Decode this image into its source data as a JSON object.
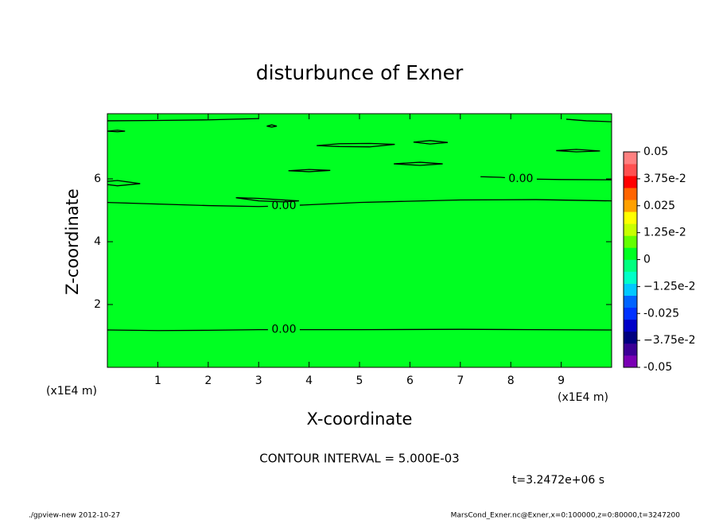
{
  "chart_data": {
    "type": "contour",
    "title": "disturbunce of Exner",
    "xlabel": "X-coordinate",
    "ylabel": "Z-coordinate",
    "x_unit": "(x1E4 m)",
    "xlim": [
      0,
      10
    ],
    "xticks": [
      1,
      2,
      3,
      4,
      5,
      6,
      7,
      8,
      9
    ],
    "ylim": [
      0,
      8
    ],
    "yticks": [
      2,
      4,
      6
    ],
    "field_color": "#00ff22",
    "line_color": "#000000",
    "contours": [
      {
        "level": 0,
        "label": "0.00",
        "x": [
          0,
          1,
          2,
          3,
          3.5,
          5,
          7,
          8.5,
          10
        ],
        "y": [
          1.19,
          1.17,
          1.18,
          1.2,
          1.2,
          1.2,
          1.21,
          1.2,
          1.19
        ]
      },
      {
        "level": 0,
        "label": "0.00",
        "x": [
          0,
          1,
          2,
          3,
          3.5,
          5,
          7,
          8.5,
          10
        ],
        "y": [
          5.25,
          5.2,
          5.15,
          5.12,
          5.14,
          5.25,
          5.33,
          5.34,
          5.3
        ]
      },
      {
        "level": 0,
        "label": "0.00",
        "x": [
          7.4,
          7.8,
          8.2,
          9,
          10
        ],
        "y": [
          6.07,
          6.05,
          6.0,
          5.98,
          5.97
        ]
      },
      {
        "level": 0,
        "x": [
          2.55,
          3,
          3.5,
          3.8,
          3.5,
          3,
          2.55
        ],
        "y": [
          5.4,
          5.38,
          5.33,
          5.3,
          5.27,
          5.3,
          5.4
        ]
      },
      {
        "level": 0,
        "x": [
          4.15,
          4.6,
          5.2,
          5.7,
          5.2,
          4.6,
          4.15
        ],
        "y": [
          7.06,
          7.12,
          7.13,
          7.1,
          7.02,
          7.03,
          7.06
        ]
      },
      {
        "level": 0,
        "x": [
          6.07,
          6.4,
          6.75,
          6.4,
          6.07
        ],
        "y": [
          7.17,
          7.22,
          7.16,
          7.11,
          7.17
        ]
      },
      {
        "level": 0,
        "x": [
          5.68,
          6.2,
          6.65,
          6.2,
          5.68
        ],
        "y": [
          6.48,
          6.53,
          6.48,
          6.43,
          6.48
        ]
      },
      {
        "level": 0,
        "x": [
          3.59,
          4.0,
          4.42,
          4.0,
          3.59
        ],
        "y": [
          6.26,
          6.3,
          6.27,
          6.23,
          6.26
        ]
      },
      {
        "level": 0,
        "x": [
          8.9,
          9.3,
          9.77,
          9.3,
          8.9
        ],
        "y": [
          6.9,
          6.94,
          6.89,
          6.86,
          6.9
        ]
      },
      {
        "level": 0,
        "x": [
          3.16,
          3.26,
          3.36,
          3.26,
          3.16
        ],
        "y": [
          7.68,
          7.72,
          7.68,
          7.65,
          7.68
        ]
      },
      {
        "level": 0,
        "x": [
          0,
          0.2,
          0.35,
          0.2,
          0
        ],
        "y": [
          7.52,
          7.55,
          7.52,
          7.5,
          7.52
        ]
      },
      {
        "level": 0,
        "x": [
          0,
          0.2,
          0.65,
          0.2,
          0
        ],
        "y": [
          5.92,
          5.95,
          5.85,
          5.78,
          5.82
        ]
      },
      {
        "level": 0,
        "x": [
          0,
          1,
          2,
          3
        ],
        "y": [
          7.85,
          7.86,
          7.88,
          7.92
        ]
      },
      {
        "level": 0,
        "x": [
          9.1,
          9.5,
          10
        ],
        "y": [
          7.9,
          7.85,
          7.82
        ]
      }
    ],
    "clim": [
      -0.05,
      0.05
    ],
    "colors": [
      "#7a00b4",
      "#3c0096",
      "#000080",
      "#0000c8",
      "#0032ff",
      "#0064ff",
      "#00c8ff",
      "#00ffc8",
      "#00ff80",
      "#00ff22",
      "#64ff00",
      "#c8ff00",
      "#ffff00",
      "#ffa000",
      "#ff6400",
      "#ff0000",
      "#ff5050",
      "#ff8080"
    ],
    "cticks": [
      -0.05,
      {
        "value": -0.0375,
        "label": "−3.75e-2"
      },
      -0.025,
      {
        "value": -0.0125,
        "label": "−1.25e-2"
      },
      0,
      {
        "value": 0.0125,
        "label": "1.25e-2"
      },
      0.025,
      {
        "value": 0.0375,
        "label": "3.75e-2"
      },
      0.05
    ],
    "annotations": [
      "CONTOUR INTERVAL = 5.000E-03",
      "t=3.2472e+06 s"
    ],
    "footer_left": "./gpview-new  2012-10-27",
    "footer_right": "MarsCond_Exner.nc@Exner,x=0:100000,z=0:80000,t=3247200"
  }
}
